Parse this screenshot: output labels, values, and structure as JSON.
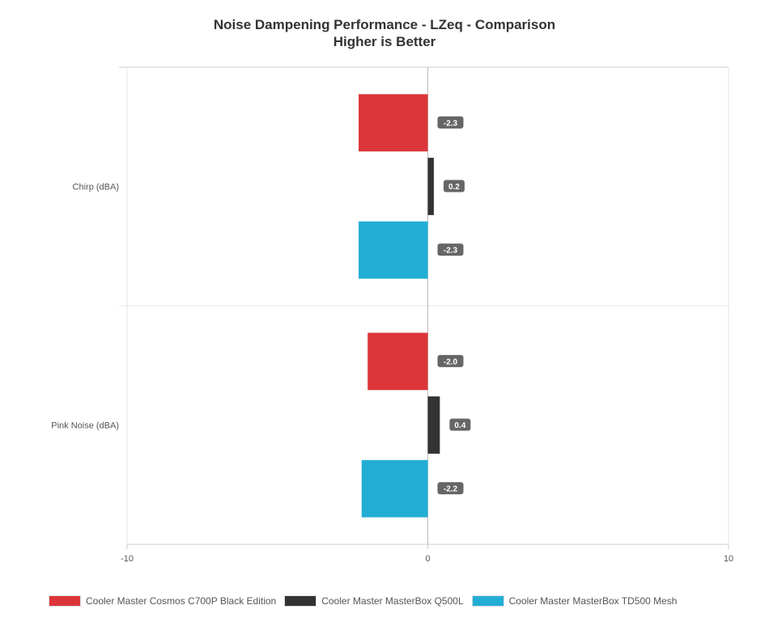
{
  "chart_data": {
    "type": "bar",
    "orientation": "horizontal",
    "title": "Noise Dampening Performance - LZeq - Comparison",
    "subtitle": "Higher is Better",
    "categories": [
      "Chirp (dBA)",
      "Pink Noise (dBA)"
    ],
    "series": [
      {
        "name": "Cooler Master Cosmos C700P Black Edition",
        "color": "#dc3539",
        "values": [
          -2.3,
          -2.0
        ],
        "labels": [
          "-2.3",
          "-2.0"
        ]
      },
      {
        "name": "Cooler Master MasterBox Q500L",
        "color": "#333333",
        "values": [
          0.2,
          0.4
        ],
        "labels": [
          "0.2",
          "0.4"
        ]
      },
      {
        "name": "Cooler Master MasterBox TD500 Mesh",
        "color": "#22add5",
        "values": [
          -2.3,
          -2.2
        ],
        "labels": [
          "-2.3",
          "-2.2"
        ]
      }
    ],
    "xlim": [
      -10,
      10
    ],
    "xticks": [
      "-10",
      "0",
      "10"
    ],
    "grid": true,
    "legend": "bottom"
  }
}
